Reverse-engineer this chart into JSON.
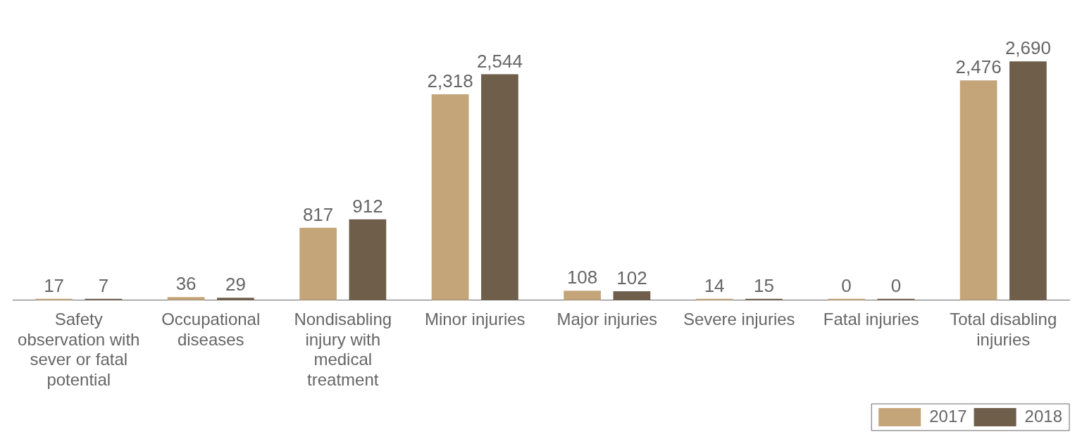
{
  "chart_data": {
    "type": "bar",
    "categories": [
      "Safety observation with sever or fatal potential",
      "Occupational diseases",
      "Nondisabling injury with medical treatment",
      "Minor injuries",
      "Major injuries",
      "Severe injuries",
      "Fatal injuries",
      "Total disabling injuries"
    ],
    "series": [
      {
        "name": "2017",
        "color": "#c4a57a",
        "values": [
          17,
          36,
          817,
          2318,
          108,
          14,
          0,
          2476
        ],
        "value_labels": [
          "17",
          "36",
          "817",
          "2,318",
          "108",
          "14",
          "0",
          "2,476"
        ]
      },
      {
        "name": "2018",
        "color": "#6e5e4a",
        "values": [
          7,
          29,
          912,
          2544,
          102,
          15,
          0,
          2690
        ],
        "value_labels": [
          "7",
          "29",
          "912",
          "2,544",
          "102",
          "15",
          "0",
          "2,690"
        ]
      }
    ],
    "legend": "bottom right",
    "grid": false,
    "tick_labels": "x"
  }
}
